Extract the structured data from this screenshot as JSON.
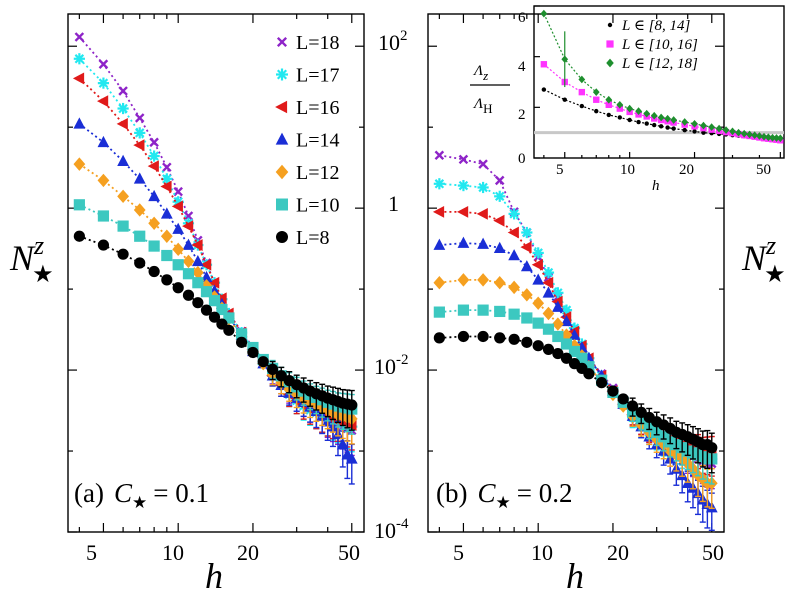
{
  "chart_data": [
    {
      "type": "scatter",
      "panel": "(a)",
      "title": "(a) C★ = 0.1",
      "xlabel": "h",
      "ylabel": "N^z_★",
      "xscale": "log",
      "yscale": "log",
      "xlim": [
        3.6,
        56
      ],
      "ylim": [
        0.0001,
        250
      ],
      "xticks": [
        5,
        10,
        20,
        50
      ],
      "x": [
        4,
        5,
        6,
        7,
        8,
        9,
        10,
        11,
        12,
        13,
        14,
        15,
        16,
        18,
        20,
        22,
        24,
        26,
        28,
        30,
        32,
        34,
        36,
        38,
        40,
        42,
        44,
        46,
        48,
        50
      ],
      "legend_position": "top-right",
      "series": [
        {
          "name": "L=18",
          "marker": "x",
          "color": "#8e24c8",
          "values": [
            130,
            60,
            28,
            13,
            6.5,
            3.2,
            1.6,
            0.8,
            0.4,
            0.21,
            0.12,
            0.075,
            0.05,
            0.03,
            0.019,
            0.013,
            0.009,
            0.007,
            0.0055,
            0.0045,
            0.004,
            0.0035,
            0.003,
            0.0028,
            0.0025,
            0.0023,
            0.0022,
            0.002,
            0.0019,
            0.0018
          ]
        },
        {
          "name": "L=17",
          "marker": "star",
          "color": "#22e8f0",
          "values": [
            70,
            35,
            17,
            8.5,
            4.4,
            2.3,
            1.2,
            0.65,
            0.35,
            0.2,
            0.12,
            0.075,
            0.05,
            0.029,
            0.018,
            0.012,
            0.0085,
            0.0065,
            0.005,
            0.0042,
            0.0036,
            0.0032,
            0.003,
            0.0028,
            0.0026,
            0.0024,
            0.0023,
            0.0022,
            0.0021,
            0.002
          ]
        },
        {
          "name": "L=16",
          "marker": "triangle-left",
          "color": "#e01a1a",
          "values": [
            40,
            21,
            11,
            6,
            3.3,
            1.85,
            1.05,
            0.6,
            0.35,
            0.2,
            0.12,
            0.077,
            0.05,
            0.029,
            0.018,
            0.012,
            0.0085,
            0.0065,
            0.005,
            0.0042,
            0.0037,
            0.0033,
            0.003,
            0.0028,
            0.0026,
            0.0025,
            0.0024,
            0.0023,
            0.0022,
            0.0021
          ]
        },
        {
          "name": "L=14",
          "marker": "triangle-up",
          "color": "#1a2ed6",
          "values": [
            11,
            6.5,
            3.8,
            2.3,
            1.4,
            0.85,
            0.55,
            0.35,
            0.22,
            0.14,
            0.095,
            0.065,
            0.045,
            0.027,
            0.017,
            0.012,
            0.0085,
            0.0065,
            0.0052,
            0.0045,
            0.004,
            0.0035,
            0.0031,
            0.0027,
            0.0023,
            0.002,
            0.0016,
            0.0012,
            0.0009,
            0.0008
          ]
        },
        {
          "name": "L=12",
          "marker": "diamond",
          "color": "#f5a020",
          "values": [
            3.5,
            2.2,
            1.4,
            0.95,
            0.65,
            0.45,
            0.31,
            0.22,
            0.16,
            0.11,
            0.08,
            0.058,
            0.043,
            0.026,
            0.017,
            0.012,
            0.0088,
            0.007,
            0.0058,
            0.005,
            0.0044,
            0.004,
            0.0037,
            0.0034,
            0.0032,
            0.003,
            0.0028,
            0.0027,
            0.0026,
            0.0025
          ]
        },
        {
          "name": "L=10",
          "marker": "square",
          "color": "#3cc8c0",
          "values": [
            1.1,
            0.8,
            0.6,
            0.45,
            0.34,
            0.26,
            0.2,
            0.155,
            0.12,
            0.093,
            0.072,
            0.056,
            0.044,
            0.028,
            0.019,
            0.0135,
            0.0105,
            0.0085,
            0.0072,
            0.0062,
            0.0055,
            0.005,
            0.0046,
            0.0043,
            0.004,
            0.0038,
            0.0036,
            0.0035,
            0.0034,
            0.0033
          ]
        },
        {
          "name": "L=8",
          "marker": "circle",
          "color": "#000000",
          "values": [
            0.45,
            0.35,
            0.27,
            0.21,
            0.165,
            0.13,
            0.104,
            0.084,
            0.068,
            0.055,
            0.045,
            0.037,
            0.031,
            0.022,
            0.0165,
            0.0127,
            0.0102,
            0.0085,
            0.0074,
            0.0066,
            0.006,
            0.0055,
            0.0051,
            0.0048,
            0.0045,
            0.0043,
            0.0041,
            0.0039,
            0.0038,
            0.0037
          ]
        }
      ]
    },
    {
      "type": "scatter",
      "panel": "(b)",
      "title": "(b) C★ = 0.2",
      "xlabel": "h",
      "ylabel": "N^z_★",
      "xscale": "log",
      "yscale": "log",
      "xlim": [
        3.6,
        56
      ],
      "ylim": [
        0.0001,
        250
      ],
      "xticks": [
        5,
        10,
        20,
        50
      ],
      "yticks": [
        "10^-4",
        "10^-2",
        "1",
        "10^2"
      ],
      "x": [
        4,
        5,
        6,
        7,
        8,
        9,
        10,
        11,
        12,
        13,
        14,
        15,
        16,
        18,
        20,
        22,
        24,
        26,
        28,
        30,
        32,
        34,
        36,
        38,
        40,
        42,
        44,
        46,
        48,
        50
      ],
      "series": [
        {
          "name": "L=18",
          "color": "#8e24c8",
          "values": [
            4.5,
            4,
            3.5,
            2.2,
            0.9,
            0.5,
            0.25,
            0.14,
            0.08,
            0.05,
            0.03,
            0.02,
            0.014,
            0.009,
            0.006,
            0.004,
            0.0028,
            0.0022,
            0.0018,
            0.0016,
            0.0014,
            0.0012,
            0.0011,
            0.001,
            0.0009,
            0.00085,
            0.0008,
            0.00075,
            0.0007,
            0.0007
          ]
        },
        {
          "name": "L=17",
          "color": "#22e8f0",
          "values": [
            2,
            1.9,
            1.8,
            1.4,
            0.85,
            0.5,
            0.28,
            0.16,
            0.09,
            0.055,
            0.033,
            0.021,
            0.014,
            0.0085,
            0.0055,
            0.0037,
            0.0026,
            0.002,
            0.0017,
            0.0015,
            0.0013,
            0.0012,
            0.0011,
            0.001,
            0.00095,
            0.0009,
            0.00085,
            0.0008,
            0.0008,
            0.0008
          ]
        },
        {
          "name": "L=16",
          "color": "#e01a1a",
          "values": [
            0.9,
            0.9,
            0.85,
            0.7,
            0.5,
            0.33,
            0.2,
            0.12,
            0.07,
            0.045,
            0.03,
            0.02,
            0.014,
            0.0085,
            0.0055,
            0.0038,
            0.0028,
            0.0022,
            0.0018,
            0.0016,
            0.0015,
            0.0014,
            0.0013,
            0.0012,
            0.0012,
            0.0011,
            0.0011,
            0.001,
            0.001,
            0.001
          ]
        },
        {
          "name": "L=14",
          "color": "#1a2ed6",
          "values": [
            0.35,
            0.37,
            0.36,
            0.32,
            0.26,
            0.19,
            0.13,
            0.09,
            0.06,
            0.04,
            0.027,
            0.019,
            0.014,
            0.0085,
            0.0055,
            0.0038,
            0.0027,
            0.002,
            0.0015,
            0.0012,
            0.001,
            0.0008,
            0.0006,
            0.0005,
            0.0004,
            0.00035,
            0.0003,
            0.00025,
            0.00022,
            0.0002
          ]
        },
        {
          "name": "L=12",
          "color": "#f5a020",
          "values": [
            0.12,
            0.13,
            0.13,
            0.12,
            0.105,
            0.085,
            0.067,
            0.05,
            0.037,
            0.027,
            0.02,
            0.015,
            0.011,
            0.0072,
            0.005,
            0.0036,
            0.0027,
            0.0021,
            0.0017,
            0.0014,
            0.0012,
            0.001,
            0.0009,
            0.0008,
            0.0007,
            0.0006,
            0.0005,
            0.00045,
            0.0004,
            0.0004
          ]
        },
        {
          "name": "L=10",
          "color": "#3cc8c0",
          "values": [
            0.052,
            0.055,
            0.055,
            0.053,
            0.049,
            0.044,
            0.038,
            0.032,
            0.026,
            0.021,
            0.017,
            0.014,
            0.011,
            0.0075,
            0.0053,
            0.004,
            0.0031,
            0.0025,
            0.002,
            0.0017,
            0.0015,
            0.0013,
            0.0012,
            0.0011,
            0.001,
            0.00095,
            0.0009,
            0.00085,
            0.0008,
            0.0008
          ]
        },
        {
          "name": "L=8",
          "color": "#000000",
          "values": [
            0.025,
            0.026,
            0.026,
            0.025,
            0.024,
            0.022,
            0.02,
            0.018,
            0.016,
            0.014,
            0.012,
            0.0105,
            0.009,
            0.007,
            0.0055,
            0.0044,
            0.0036,
            0.003,
            0.0026,
            0.0023,
            0.0021,
            0.0019,
            0.0017,
            0.0016,
            0.0015,
            0.0014,
            0.0013,
            0.0012,
            0.0012,
            0.0011
          ]
        }
      ]
    },
    {
      "type": "scatter",
      "panel": "inset",
      "xlabel": "h",
      "ylabel": "Λ_z / Λ_H",
      "xscale": "log",
      "yscale": "linear",
      "xlim": [
        3.6,
        52
      ],
      "ylim": [
        0,
        6
      ],
      "xticks": [
        5,
        10,
        20,
        50
      ],
      "yticks": [
        0,
        2,
        4,
        6
      ],
      "reference_line": 1,
      "x": [
        4,
        5,
        6,
        7,
        8,
        9,
        10,
        11,
        12,
        13,
        14,
        15,
        16,
        18,
        20,
        22,
        24,
        26,
        28,
        30,
        32,
        34,
        36,
        38,
        40,
        42,
        44,
        46,
        48,
        50
      ],
      "series": [
        {
          "name": "L ∈ [8, 14]",
          "marker": "circle-small",
          "color": "#000000",
          "values": [
            2.7,
            2.3,
            2.05,
            1.85,
            1.7,
            1.6,
            1.5,
            1.42,
            1.36,
            1.3,
            1.25,
            1.2,
            1.16,
            1.1,
            1.05,
            1.0,
            0.98,
            0.95,
            0.93,
            0.9,
            0.88,
            0.86,
            0.84,
            0.82,
            0.8,
            0.78,
            0.77,
            0.76,
            0.75,
            0.74
          ]
        },
        {
          "name": "L ∈ [10, 16]",
          "marker": "square",
          "color": "#ff33ff",
          "values": [
            3.7,
            3.0,
            2.6,
            2.3,
            2.1,
            1.95,
            1.82,
            1.72,
            1.64,
            1.56,
            1.5,
            1.45,
            1.4,
            1.32,
            1.25,
            1.18,
            1.12,
            1.07,
            1.02,
            0.98,
            0.94,
            0.9,
            0.87,
            0.84,
            0.81,
            0.78,
            0.76,
            0.74,
            0.72,
            0.7
          ]
        },
        {
          "name": "L ∈ [12, 18]",
          "marker": "diamond",
          "color": "#1e8f2e",
          "values": [
            5.7,
            3.9,
            3.1,
            2.6,
            2.3,
            2.1,
            1.95,
            1.85,
            1.75,
            1.67,
            1.6,
            1.55,
            1.5,
            1.42,
            1.35,
            1.28,
            1.22,
            1.16,
            1.1,
            1.05,
            1.0,
            0.96,
            0.93,
            0.9,
            0.87,
            0.84,
            0.82,
            0.8,
            0.79,
            0.78
          ]
        }
      ]
    }
  ],
  "labels": {
    "panel_a_prefix": "(a)",
    "panel_a_C": "C",
    "panel_a_value": "= 0.1",
    "panel_b_prefix": "(b)",
    "panel_b_C": "C",
    "panel_b_value": "= 0.2",
    "star": "★",
    "ylabel_N": "N",
    "ylabel_sup": "z",
    "ylabel_sub": "★",
    "xlabel": "h",
    "inset_num": "Λ",
    "inset_num_sub": "z",
    "inset_den": "Λ",
    "inset_den_sub": "H",
    "xtick_5": "5",
    "xtick_10": "10",
    "xtick_20": "20",
    "xtick_50": "50",
    "ytick_1e2_base": "10",
    "ytick_1e2_exp": "2",
    "ytick_1": "1",
    "ytick_1em2_base": "10",
    "ytick_1em2_exp": "-2",
    "ytick_1em4_base": "10",
    "ytick_1em4_exp": "-4",
    "inset_ytick_0": "0",
    "inset_ytick_2": "2",
    "inset_ytick_4": "4",
    "inset_ytick_6": "6"
  },
  "colors": {
    "reference_line": "#c8c8c8"
  }
}
